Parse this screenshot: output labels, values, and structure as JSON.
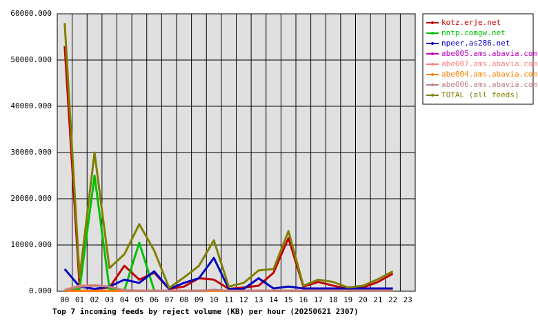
{
  "chart_data": {
    "type": "line",
    "title": "Top 7 incoming feeds by reject volume (KB) per hour (20250621 2307)",
    "categories": [
      "00",
      "01",
      "02",
      "03",
      "04",
      "05",
      "06",
      "07",
      "08",
      "09",
      "10",
      "11",
      "12",
      "13",
      "14",
      "15",
      "16",
      "17",
      "18",
      "19",
      "20",
      "21",
      "22",
      "23"
    ],
    "ylim": [
      0,
      60000
    ],
    "yticks": [
      {
        "value": 0,
        "label": "0.000"
      },
      {
        "value": 10000,
        "label": "10000.000"
      },
      {
        "value": 20000,
        "label": "20000.000"
      },
      {
        "value": 30000,
        "label": "30000.000"
      },
      {
        "value": 40000,
        "label": "40000.000"
      },
      {
        "value": 50000,
        "label": "50000.000"
      },
      {
        "value": 60000,
        "label": "60000.000"
      }
    ],
    "grid": true,
    "legend": "top-right",
    "series": [
      {
        "name": "kotz.erje.net",
        "color": "#c00000",
        "values": [
          53000,
          1000,
          500,
          800,
          5500,
          2500,
          4000,
          500,
          1000,
          2800,
          2500,
          500,
          800,
          1200,
          4000,
          11500,
          1000,
          2000,
          1200,
          500,
          800,
          2000,
          3800,
          null
        ]
      },
      {
        "name": "nntp.comgw.net",
        "color": "#00c000",
        "values": [
          0,
          500,
          25000,
          500,
          200,
          10500,
          200,
          null,
          null,
          null,
          null,
          null,
          null,
          null,
          null,
          null,
          null,
          null,
          null,
          null,
          null,
          null,
          null,
          null
        ]
      },
      {
        "name": "npeer.as286.net",
        "color": "#0000c0",
        "values": [
          4800,
          1000,
          500,
          1000,
          2500,
          1800,
          4300,
          500,
          1800,
          2800,
          7200,
          500,
          500,
          2800,
          600,
          1000,
          600,
          600,
          600,
          600,
          600,
          600,
          600,
          null
        ]
      },
      {
        "name": "abe005.ams.abavia.com",
        "color": "#c000c0",
        "values": [
          100,
          100,
          100,
          100,
          100,
          100,
          100,
          100,
          100,
          100,
          100,
          100,
          100,
          100,
          100,
          100,
          100,
          100,
          100,
          100,
          100,
          100,
          100,
          null
        ]
      },
      {
        "name": "abe007.ams.abavia.com",
        "color": "#ff8080",
        "values": [
          300,
          1200,
          1300,
          1000,
          200,
          100,
          100,
          100,
          100,
          100,
          100,
          100,
          100,
          100,
          100,
          100,
          100,
          100,
          100,
          100,
          100,
          100,
          100,
          null
        ]
      },
      {
        "name": "abe004.ams.abavia.com",
        "color": "#ff8000",
        "values": [
          100,
          100,
          100,
          100,
          100,
          100,
          100,
          100,
          100,
          100,
          100,
          100,
          100,
          100,
          100,
          100,
          100,
          100,
          100,
          100,
          100,
          100,
          100,
          null
        ]
      },
      {
        "name": "abe006.ams.abavia.com",
        "color": "#c08080",
        "values": [
          200,
          1000,
          1200,
          1000,
          200,
          100,
          100,
          100,
          100,
          100,
          300,
          100,
          100,
          100,
          100,
          100,
          100,
          100,
          100,
          100,
          100,
          100,
          100,
          null
        ]
      },
      {
        "name": "TOTAL (all feeds)",
        "color": "#808000",
        "values": [
          58000,
          3000,
          30000,
          5000,
          8000,
          14500,
          8800,
          700,
          3000,
          5500,
          11000,
          1000,
          1800,
          4500,
          4800,
          13000,
          1200,
          2500,
          2000,
          800,
          1200,
          2600,
          4300,
          null
        ]
      }
    ]
  }
}
